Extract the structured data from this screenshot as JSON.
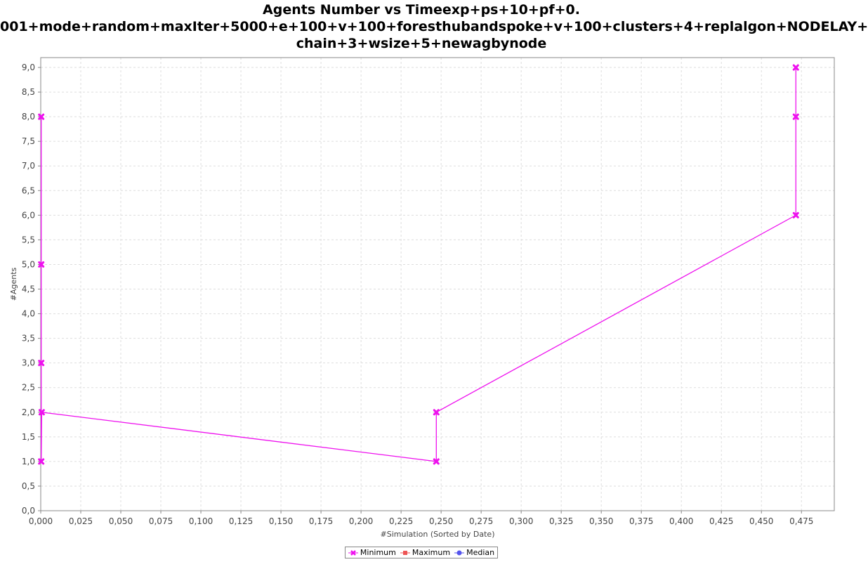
{
  "chart_data": {
    "type": "line",
    "title_lines": [
      "Agents Number vs Timeexp+ps+10+pf+0.",
      "001+mode+random+maxIter+5000+e+100+v+100+foresthubandspoke+v+100+clusters+4+replalgon+NODELAY+",
      "chain+3+wsize+5+newagbynode"
    ],
    "xlabel": "#Simulation (Sorted by Date)",
    "ylabel": "#Agents",
    "xlim": [
      0,
      0.4955
    ],
    "ylim": [
      0,
      9.2
    ],
    "x_ticks": [
      "0,000",
      "0,025",
      "0,050",
      "0,075",
      "0,100",
      "0,125",
      "0,150",
      "0,175",
      "0,200",
      "0,225",
      "0,250",
      "0,275",
      "0,300",
      "0,325",
      "0,350",
      "0,375",
      "0,400",
      "0,425",
      "0,450",
      "0,475"
    ],
    "y_ticks": [
      "0,0",
      "0,5",
      "1,0",
      "1,5",
      "2,0",
      "2,5",
      "3,0",
      "3,5",
      "4,0",
      "4,5",
      "5,0",
      "5,5",
      "6,0",
      "6,5",
      "7,0",
      "7,5",
      "8,0",
      "8,5",
      "9,0"
    ],
    "grid": true,
    "legend_position": "bottom",
    "series": [
      {
        "name": "Minimum",
        "color": "#ee11ee",
        "marker": "x",
        "points": [
          [
            0.0003,
            8
          ],
          [
            0.0003,
            5
          ],
          [
            0.0003,
            3
          ],
          [
            0.0003,
            1
          ],
          [
            0.0006,
            2
          ],
          [
            0.247,
            1
          ],
          [
            0.247,
            2
          ],
          [
            0.4715,
            6
          ],
          [
            0.4715,
            8
          ],
          [
            0.4715,
            9
          ]
        ]
      },
      {
        "name": "Maximum",
        "color": "#ee5555",
        "marker": "square",
        "points": []
      },
      {
        "name": "Median",
        "color": "#5555ee",
        "marker": "circle",
        "points": []
      }
    ]
  }
}
